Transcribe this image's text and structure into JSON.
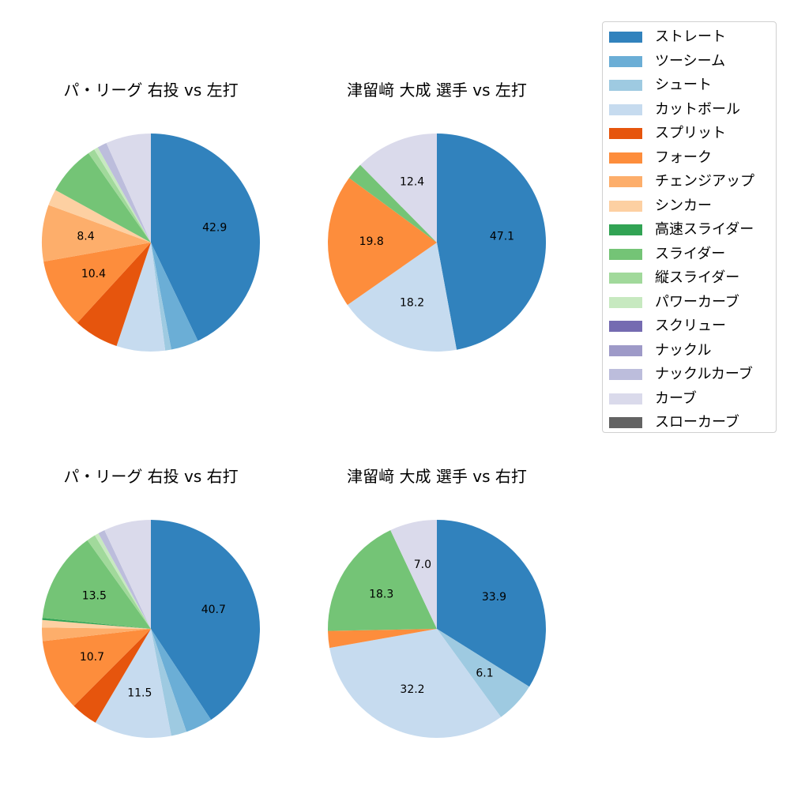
{
  "colors": {
    "ストレート": "#3182bd",
    "ツーシーム": "#6baed6",
    "シュート": "#9ecae1",
    "カットボール": "#c6dbef",
    "スプリット": "#e6550d",
    "フォーク": "#fd8d3c",
    "チェンジアップ": "#fdae6b",
    "シンカー": "#fdd0a2",
    "高速スライダー": "#31a354",
    "スライダー": "#74c476",
    "縦スライダー": "#a1d99b",
    "パワーカーブ": "#c7e9c0",
    "スクリュー": "#756bb1",
    "ナックル": "#9e9ac8",
    "ナックルカーブ": "#bcbddc",
    "カーブ": "#dadaeb",
    "スローカーブ": "#636363"
  },
  "legend": {
    "items": [
      {
        "label": "ストレート",
        "color": "#3182bd"
      },
      {
        "label": "ツーシーム",
        "color": "#6baed6"
      },
      {
        "label": "シュート",
        "color": "#9ecae1"
      },
      {
        "label": "カットボール",
        "color": "#c6dbef"
      },
      {
        "label": "スプリット",
        "color": "#e6550d"
      },
      {
        "label": "フォーク",
        "color": "#fd8d3c"
      },
      {
        "label": "チェンジアップ",
        "color": "#fdae6b"
      },
      {
        "label": "シンカー",
        "color": "#fdd0a2"
      },
      {
        "label": "高速スライダー",
        "color": "#31a354"
      },
      {
        "label": "スライダー",
        "color": "#74c476"
      },
      {
        "label": "縦スライダー",
        "color": "#a1d99b"
      },
      {
        "label": "パワーカーブ",
        "color": "#c7e9c0"
      },
      {
        "label": "スクリュー",
        "color": "#756bb1"
      },
      {
        "label": "ナックル",
        "color": "#9e9ac8"
      },
      {
        "label": "ナックルカーブ",
        "color": "#bcbddc"
      },
      {
        "label": "カーブ",
        "color": "#dadaeb"
      },
      {
        "label": "スローカーブ",
        "color": "#636363"
      }
    ]
  },
  "chart_data": [
    {
      "type": "pie",
      "title": "パ・リーグ 右投 vs 左打",
      "position": "top-left",
      "start_angle": 90,
      "direction": "clockwise",
      "label_threshold": 8,
      "categories": [
        "ストレート",
        "ツーシーム",
        "シュート",
        "カットボール",
        "スプリット",
        "フォーク",
        "チェンジアップ",
        "シンカー",
        "スライダー",
        "縦スライダー",
        "パワーカーブ",
        "ナックルカーブ",
        "カーブ"
      ],
      "values": [
        42.9,
        4.1,
        0.9,
        7.2,
        6.7,
        10.4,
        8.4,
        2.4,
        7.3,
        1.0,
        0.6,
        1.4,
        6.7
      ],
      "labels_shown": [
        "42.9",
        "10.4",
        "8.4"
      ]
    },
    {
      "type": "pie",
      "title": "津留﨑 大成 選手 vs 左打",
      "position": "top-right",
      "start_angle": 90,
      "direction": "clockwise",
      "label_threshold": 8,
      "categories": [
        "ストレート",
        "カットボール",
        "フォーク",
        "スライダー",
        "カーブ"
      ],
      "values": [
        47.1,
        18.2,
        19.8,
        2.5,
        12.4
      ],
      "labels_shown": [
        "47.1",
        "18.2",
        "19.8",
        "12.4"
      ]
    },
    {
      "type": "pie",
      "title": "パ・リーグ 右投 vs 右打",
      "position": "bottom-left",
      "start_angle": 90,
      "direction": "clockwise",
      "label_threshold": 8,
      "categories": [
        "ストレート",
        "ツーシーム",
        "シュート",
        "カットボール",
        "スプリット",
        "フォーク",
        "チェンジアップ",
        "シンカー",
        "高速スライダー",
        "スライダー",
        "縦スライダー",
        "パワーカーブ",
        "ナックルカーブ",
        "カーブ"
      ],
      "values": [
        40.7,
        4.0,
        2.3,
        11.5,
        4.0,
        10.7,
        2.0,
        1.1,
        0.3,
        13.5,
        1.3,
        0.6,
        1.0,
        7.0
      ],
      "labels_shown": [
        "40.7",
        "11.5",
        "10.7",
        "13.5"
      ]
    },
    {
      "type": "pie",
      "title": "津留﨑 大成 選手 vs 右打",
      "position": "bottom-right",
      "start_angle": 90,
      "direction": "clockwise",
      "label_threshold": 5,
      "categories": [
        "ストレート",
        "シュート",
        "カットボール",
        "フォーク",
        "スライダー",
        "カーブ"
      ],
      "values": [
        33.9,
        6.1,
        32.2,
        2.5,
        18.3,
        7.0
      ],
      "labels_shown": [
        "33.9",
        "6.1",
        "32.2",
        "18.3",
        "7.0"
      ]
    }
  ]
}
